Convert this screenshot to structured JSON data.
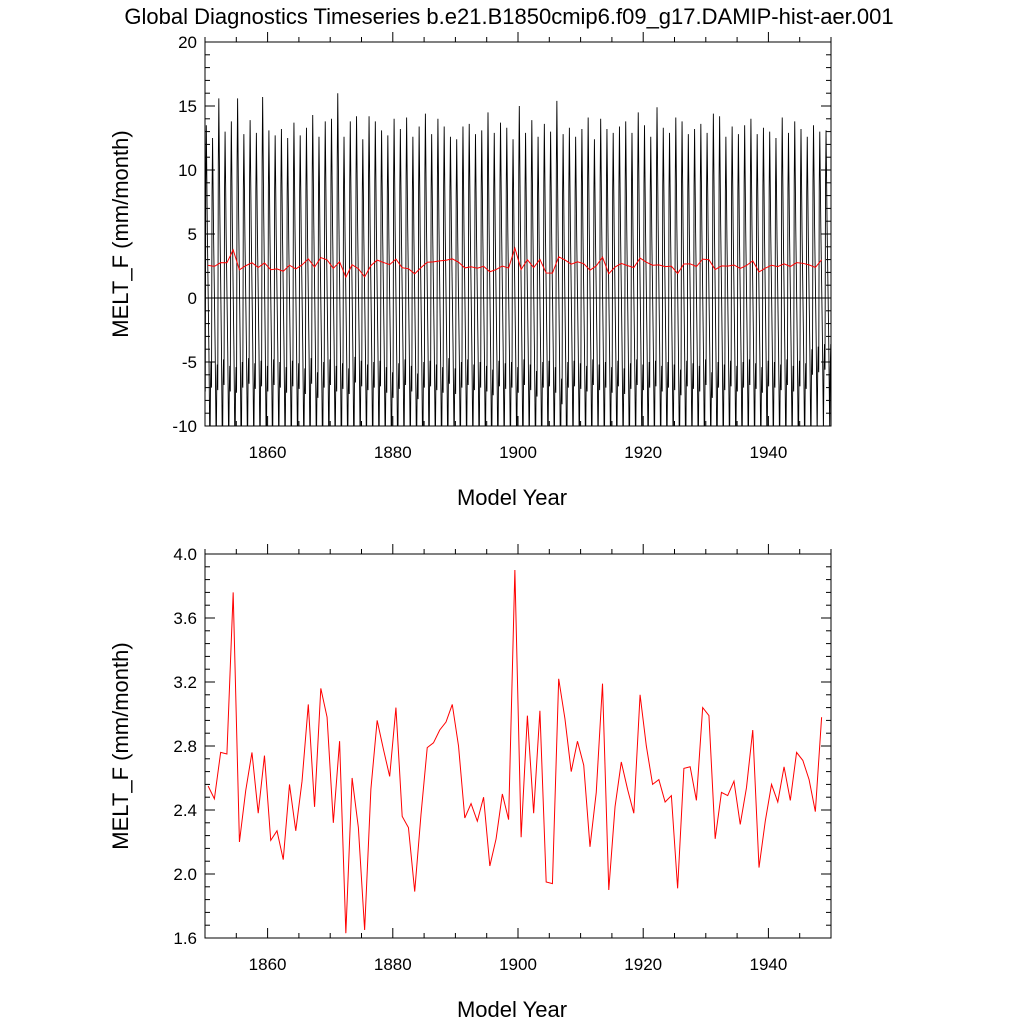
{
  "title": "Global Diagnostics Timeseries b.e21.B1850cmip6.f09_g17.DAMIP-hist-aer.001",
  "colors": {
    "monthly": "#000000",
    "annual": "#ff0000",
    "zero_line": "#000000"
  },
  "chart_data": [
    {
      "type": "line",
      "ylabel": "MELT_F (mm/month)",
      "xlabel": "Model Year",
      "xlim": [
        1850,
        1950
      ],
      "ylim": [
        -10,
        20
      ],
      "xticks": [
        1860,
        1880,
        1900,
        1920,
        1940
      ],
      "yticks": [
        -10,
        -5,
        0,
        5,
        10,
        15,
        20
      ],
      "reference_line": 0,
      "series": [
        {
          "style": "monthly-seasonal-cycle",
          "years": [
            1850,
            1949
          ],
          "annual_peaks": [
            13.5,
            12.5,
            15.6,
            13.0,
            13.8,
            15.6,
            12.8,
            13.9,
            12.9,
            15.7,
            13.1,
            12.7,
            13.2,
            12.5,
            13.7,
            12.7,
            13.3,
            14.3,
            12.6,
            13.8,
            14.0,
            16.0,
            12.6,
            13.8,
            14.2,
            12.4,
            14.2,
            13.8,
            13.1,
            12.7,
            14.0,
            13.2,
            14.1,
            12.6,
            13.4,
            14.4,
            12.8,
            14.0,
            13.4,
            12.6,
            12.4,
            13.4,
            13.6,
            12.8,
            13.1,
            14.5,
            12.9,
            13.7,
            13.3,
            12.4,
            15.0,
            12.9,
            13.9,
            12.6,
            13.6,
            13.0,
            15.4,
            12.8,
            13.3,
            12.6,
            13.2,
            14.1,
            12.4,
            14.0,
            13.2,
            12.9,
            13.4,
            13.8,
            12.9,
            14.5,
            13.5,
            12.6,
            14.9,
            13.3,
            12.9,
            14.1,
            13.8,
            12.8,
            13.2,
            13.6,
            12.9,
            14.4,
            14.2,
            12.6,
            13.4,
            12.8,
            13.5,
            14.0,
            12.8,
            13.3,
            13.0,
            12.5,
            14.1,
            12.9,
            13.8,
            13.2,
            12.6,
            13.5,
            13.0,
            13.1
          ],
          "annual_troughs": [
            -7.3,
            -7.0,
            -7.2,
            -6.8,
            -7.3,
            -7.4,
            -7.0,
            -6.7,
            -7.1,
            -6.9,
            -7.3,
            -6.8,
            -7.0,
            -7.4,
            -6.9,
            -7.1,
            -7.5,
            -6.7,
            -7.8,
            -7.0,
            -6.8,
            -7.3,
            -7.1,
            -7.5,
            -6.6,
            -6.9,
            -7.2,
            -7.0,
            -6.9,
            -7.4,
            -7.8,
            -7.1,
            -6.8,
            -7.3,
            -7.9,
            -7.0,
            -6.9,
            -7.2,
            -7.4,
            -6.7,
            -7.5,
            -7.0,
            -6.8,
            -7.2,
            -7.0,
            -7.3,
            -7.6,
            -6.9,
            -7.1,
            -7.0,
            -7.4,
            -6.8,
            -7.2,
            -7.7,
            -7.0,
            -6.9,
            -7.4,
            -8.3,
            -7.0,
            -6.9,
            -7.1,
            -7.3,
            -6.8,
            -7.2,
            -7.0,
            -7.4,
            -6.9,
            -7.5,
            -7.1,
            -6.8,
            -7.2,
            -7.0,
            -6.9,
            -7.3,
            -7.0,
            -7.2,
            -7.6,
            -6.9,
            -7.1,
            -7.3,
            -6.8,
            -7.8,
            -7.0,
            -7.2,
            -6.9,
            -7.3,
            -7.0,
            -6.8,
            -7.1,
            -7.4,
            -6.9,
            -7.0,
            -7.2,
            -6.8,
            -7.3,
            -6.9,
            -7.1,
            -6.0,
            -5.8,
            -5.6
          ]
        },
        {
          "style": "annual-mean",
          "x": [
            1850.5,
            1851.5,
            1852.5,
            1853.5,
            1854.5,
            1855.5,
            1856.5,
            1857.5,
            1858.5,
            1859.5,
            1860.5,
            1861.5,
            1862.5,
            1863.5,
            1864.5,
            1865.5,
            1866.5,
            1867.5,
            1868.5,
            1869.5,
            1870.5,
            1871.5,
            1872.5,
            1873.5,
            1874.5,
            1875.5,
            1876.5,
            1877.5,
            1878.5,
            1879.5,
            1880.5,
            1881.5,
            1882.5,
            1883.5,
            1884.5,
            1885.5,
            1886.5,
            1887.5,
            1888.5,
            1889.5,
            1890.5,
            1891.5,
            1892.5,
            1893.5,
            1894.5,
            1895.5,
            1896.5,
            1897.5,
            1898.5,
            1899.5,
            1900.5,
            1901.5,
            1902.5,
            1903.5,
            1904.5,
            1905.5,
            1906.5,
            1907.5,
            1908.5,
            1909.5,
            1910.5,
            1911.5,
            1912.5,
            1913.5,
            1914.5,
            1915.5,
            1916.5,
            1917.5,
            1918.5,
            1919.5,
            1920.5,
            1921.5,
            1922.5,
            1923.5,
            1924.5,
            1925.5,
            1926.5,
            1927.5,
            1928.5,
            1929.5,
            1930.5,
            1931.5,
            1932.5,
            1933.5,
            1934.5,
            1935.5,
            1936.5,
            1937.5,
            1938.5,
            1939.5,
            1940.5,
            1941.5,
            1942.5,
            1943.5,
            1944.5,
            1945.5,
            1946.5,
            1947.5,
            1948.5
          ],
          "values": [
            2.55,
            2.47,
            2.76,
            2.75,
            3.76,
            2.2,
            2.52,
            2.76,
            2.38,
            2.74,
            2.21,
            2.27,
            2.09,
            2.56,
            2.27,
            2.58,
            3.06,
            2.42,
            3.16,
            2.98,
            2.32,
            2.83,
            1.63,
            2.6,
            2.29,
            1.65,
            2.53,
            2.96,
            2.78,
            2.61,
            3.04,
            2.36,
            2.29,
            1.89,
            2.37,
            2.79,
            2.82,
            2.9,
            2.95,
            3.06,
            2.8,
            2.35,
            2.44,
            2.33,
            2.48,
            2.05,
            2.22,
            2.5,
            2.34,
            3.9,
            2.23,
            2.99,
            2.38,
            3.02,
            1.95,
            1.94,
            3.22,
            2.97,
            2.64,
            2.83,
            2.68,
            2.17,
            2.51,
            3.19,
            1.9,
            2.42,
            2.7,
            2.53,
            2.38,
            3.12,
            2.8,
            2.56,
            2.59,
            2.45,
            2.49,
            1.91,
            2.66,
            2.67,
            2.46,
            3.04,
            2.99,
            2.22,
            2.51,
            2.49,
            2.58,
            2.31,
            2.54,
            2.9,
            2.04,
            2.33,
            2.56,
            2.45,
            2.67,
            2.46,
            2.76,
            2.71,
            2.59,
            2.39,
            2.98
          ]
        }
      ]
    },
    {
      "type": "line",
      "ylabel": "MELT_F (mm/month)",
      "xlabel": "Model Year",
      "xlim": [
        1850,
        1950
      ],
      "ylim": [
        1.6,
        4.0
      ],
      "xticks": [
        1860,
        1880,
        1900,
        1920,
        1940
      ],
      "yticks": [
        1.6,
        2.0,
        2.4,
        2.8,
        3.2,
        3.6,
        4.0
      ],
      "series": [
        {
          "style": "annual-mean",
          "x": [
            1850.5,
            1851.5,
            1852.5,
            1853.5,
            1854.5,
            1855.5,
            1856.5,
            1857.5,
            1858.5,
            1859.5,
            1860.5,
            1861.5,
            1862.5,
            1863.5,
            1864.5,
            1865.5,
            1866.5,
            1867.5,
            1868.5,
            1869.5,
            1870.5,
            1871.5,
            1872.5,
            1873.5,
            1874.5,
            1875.5,
            1876.5,
            1877.5,
            1878.5,
            1879.5,
            1880.5,
            1881.5,
            1882.5,
            1883.5,
            1884.5,
            1885.5,
            1886.5,
            1887.5,
            1888.5,
            1889.5,
            1890.5,
            1891.5,
            1892.5,
            1893.5,
            1894.5,
            1895.5,
            1896.5,
            1897.5,
            1898.5,
            1899.5,
            1900.5,
            1901.5,
            1902.5,
            1903.5,
            1904.5,
            1905.5,
            1906.5,
            1907.5,
            1908.5,
            1909.5,
            1910.5,
            1911.5,
            1912.5,
            1913.5,
            1914.5,
            1915.5,
            1916.5,
            1917.5,
            1918.5,
            1919.5,
            1920.5,
            1921.5,
            1922.5,
            1923.5,
            1924.5,
            1925.5,
            1926.5,
            1927.5,
            1928.5,
            1929.5,
            1930.5,
            1931.5,
            1932.5,
            1933.5,
            1934.5,
            1935.5,
            1936.5,
            1937.5,
            1938.5,
            1939.5,
            1940.5,
            1941.5,
            1942.5,
            1943.5,
            1944.5,
            1945.5,
            1946.5,
            1947.5,
            1948.5
          ],
          "values": [
            2.55,
            2.47,
            2.76,
            2.75,
            3.76,
            2.2,
            2.52,
            2.76,
            2.38,
            2.74,
            2.21,
            2.27,
            2.09,
            2.56,
            2.27,
            2.58,
            3.06,
            2.42,
            3.16,
            2.98,
            2.32,
            2.83,
            1.63,
            2.6,
            2.29,
            1.65,
            2.53,
            2.96,
            2.78,
            2.61,
            3.04,
            2.36,
            2.29,
            1.89,
            2.37,
            2.79,
            2.82,
            2.9,
            2.95,
            3.06,
            2.8,
            2.35,
            2.44,
            2.33,
            2.48,
            2.05,
            2.22,
            2.5,
            2.34,
            3.9,
            2.23,
            2.99,
            2.38,
            3.02,
            1.95,
            1.94,
            3.22,
            2.97,
            2.64,
            2.83,
            2.68,
            2.17,
            2.51,
            3.19,
            1.9,
            2.42,
            2.7,
            2.53,
            2.38,
            3.12,
            2.8,
            2.56,
            2.59,
            2.45,
            2.49,
            1.91,
            2.66,
            2.67,
            2.46,
            3.04,
            2.99,
            2.22,
            2.51,
            2.49,
            2.58,
            2.31,
            2.54,
            2.9,
            2.04,
            2.33,
            2.56,
            2.45,
            2.67,
            2.46,
            2.76,
            2.71,
            2.59,
            2.39,
            2.98
          ]
        }
      ]
    }
  ]
}
